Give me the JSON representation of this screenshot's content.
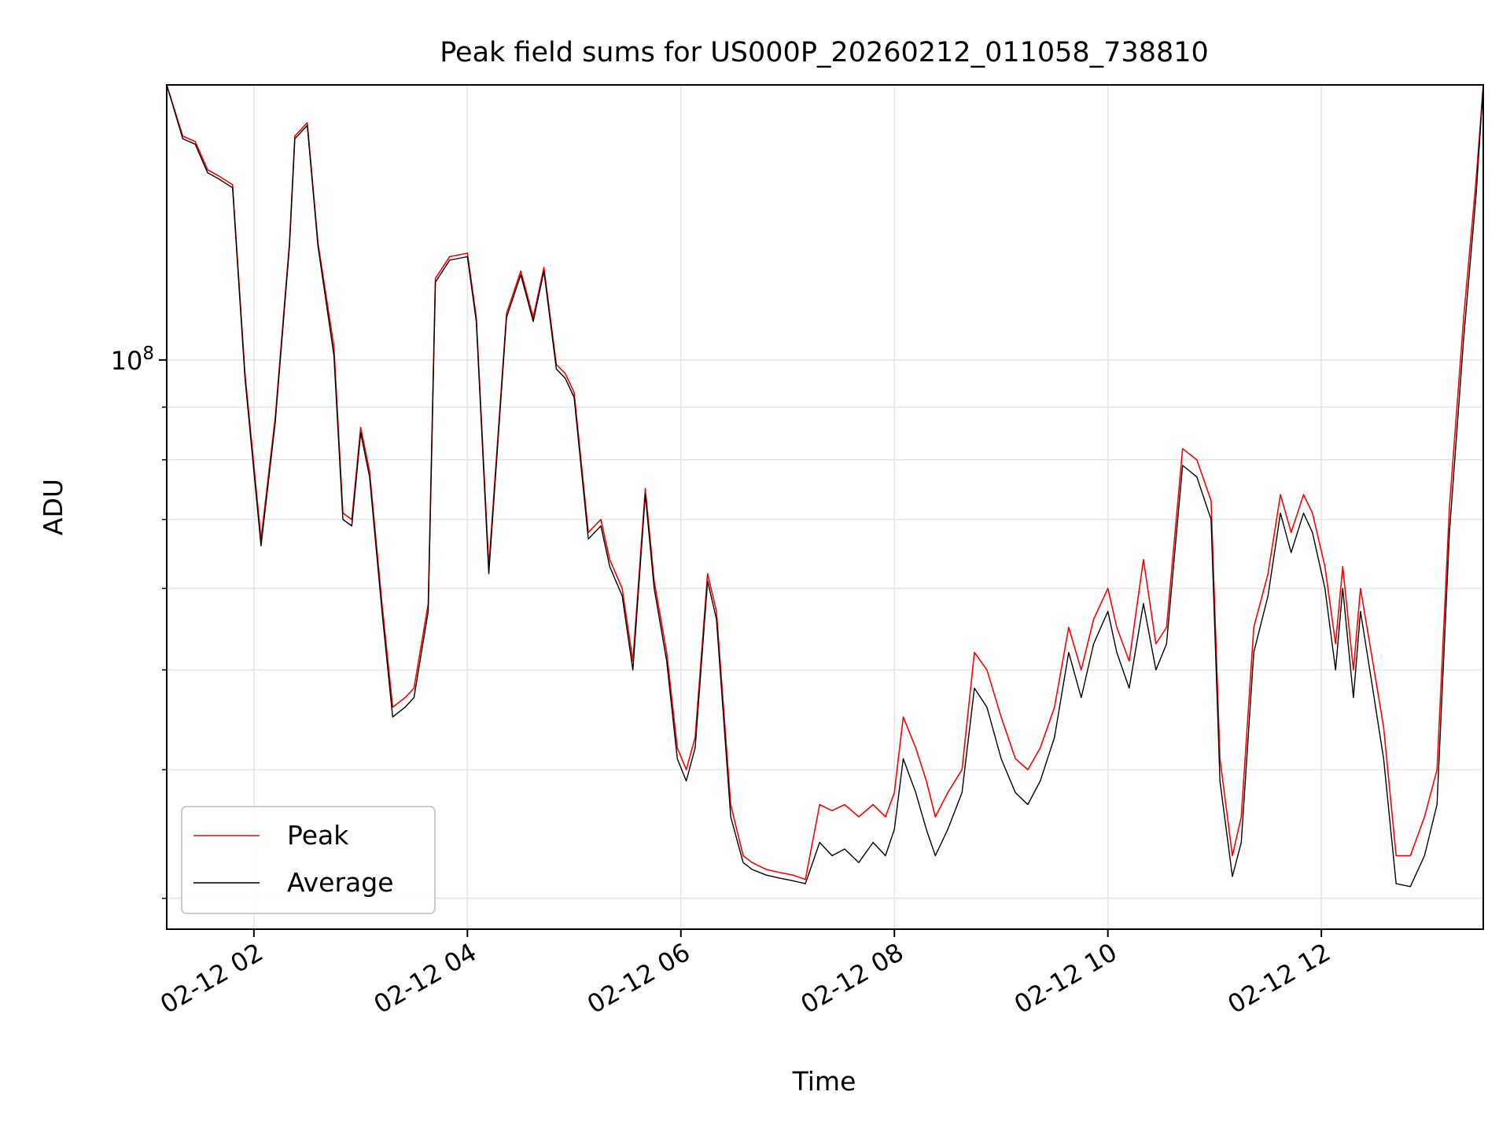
{
  "chart_data": {
    "type": "line",
    "title": "Peak field sums for US000P_20260212_011058_738810",
    "xlabel": "Time",
    "ylabel": "ADU",
    "y_scale": "log",
    "y_major_tick": {
      "value": 100000000,
      "base": "10",
      "exponent": "8"
    },
    "ylim": [
      28000000,
      185000000
    ],
    "xlim": [
      "2026-02-12 01:11",
      "2026-02-12 13:31"
    ],
    "x_ticks": [
      {
        "time": "2026-02-12 02:00",
        "label": "02-12 02"
      },
      {
        "time": "2026-02-12 04:00",
        "label": "02-12 04"
      },
      {
        "time": "2026-02-12 06:00",
        "label": "02-12 06"
      },
      {
        "time": "2026-02-12 08:00",
        "label": "02-12 08"
      },
      {
        "time": "2026-02-12 10:00",
        "label": "02-12 10"
      },
      {
        "time": "2026-02-12 12:00",
        "label": "02-12 12"
      }
    ],
    "grid": true,
    "legend_position": "lower-left",
    "colors": {
      "peak": "#ff0000",
      "average": "#000000",
      "grid": "#e6e6e6"
    },
    "series": [
      {
        "name": "Peak",
        "color": "#ff0000",
        "points": [
          [
            "2026-02-12 01:11",
            185000000
          ],
          [
            "2026-02-12 01:20",
            165000000
          ],
          [
            "2026-02-12 01:27",
            163000000
          ],
          [
            "2026-02-12 01:34",
            153000000
          ],
          [
            "2026-02-12 01:40",
            151000000
          ],
          [
            "2026-02-12 01:48",
            148000000
          ],
          [
            "2026-02-12 01:55",
            97000000
          ],
          [
            "2026-02-12 02:04",
            67000000
          ],
          [
            "2026-02-12 02:12",
            88000000
          ],
          [
            "2026-02-12 02:20",
            130000000
          ],
          [
            "2026-02-12 02:23",
            165000000
          ],
          [
            "2026-02-12 02:30",
            170000000
          ],
          [
            "2026-02-12 02:36",
            130000000
          ],
          [
            "2026-02-12 02:45",
            103000000
          ],
          [
            "2026-02-12 02:50",
            71000000
          ],
          [
            "2026-02-12 02:55",
            70000000
          ],
          [
            "2026-02-12 03:00",
            86000000
          ],
          [
            "2026-02-12 03:05",
            78000000
          ],
          [
            "2026-02-12 03:12",
            58000000
          ],
          [
            "2026-02-12 03:18",
            46000000
          ],
          [
            "2026-02-12 03:25",
            47000000
          ],
          [
            "2026-02-12 03:30",
            48000000
          ],
          [
            "2026-02-12 03:38",
            58000000
          ],
          [
            "2026-02-12 03:42",
            120000000
          ],
          [
            "2026-02-12 03:50",
            126000000
          ],
          [
            "2026-02-12 04:00",
            127000000
          ],
          [
            "2026-02-12 04:05",
            110000000
          ],
          [
            "2026-02-12 04:12",
            63000000
          ],
          [
            "2026-02-12 04:22",
            111000000
          ],
          [
            "2026-02-12 04:30",
            122000000
          ],
          [
            "2026-02-12 04:37",
            110000000
          ],
          [
            "2026-02-12 04:43",
            123000000
          ],
          [
            "2026-02-12 04:50",
            99000000
          ],
          [
            "2026-02-12 04:55",
            97000000
          ],
          [
            "2026-02-12 05:00",
            93000000
          ],
          [
            "2026-02-12 05:08",
            68000000
          ],
          [
            "2026-02-12 05:15",
            70000000
          ],
          [
            "2026-02-12 05:20",
            64000000
          ],
          [
            "2026-02-12 05:27",
            60000000
          ],
          [
            "2026-02-12 05:33",
            51000000
          ],
          [
            "2026-02-12 05:40",
            75000000
          ],
          [
            "2026-02-12 05:45",
            61000000
          ],
          [
            "2026-02-12 05:52",
            52000000
          ],
          [
            "2026-02-12 05:58",
            42000000
          ],
          [
            "2026-02-12 06:03",
            40000000
          ],
          [
            "2026-02-12 06:08",
            43000000
          ],
          [
            "2026-02-12 06:15",
            62000000
          ],
          [
            "2026-02-12 06:20",
            57000000
          ],
          [
            "2026-02-12 06:28",
            37000000
          ],
          [
            "2026-02-12 06:35",
            33000000
          ],
          [
            "2026-02-12 06:40",
            32500000
          ],
          [
            "2026-02-12 06:48",
            32000000
          ],
          [
            "2026-02-12 06:55",
            31800000
          ],
          [
            "2026-02-12 07:03",
            31600000
          ],
          [
            "2026-02-12 07:10",
            31300000
          ],
          [
            "2026-02-12 07:18",
            37000000
          ],
          [
            "2026-02-12 07:25",
            36500000
          ],
          [
            "2026-02-12 07:32",
            37000000
          ],
          [
            "2026-02-12 07:40",
            36000000
          ],
          [
            "2026-02-12 07:48",
            37000000
          ],
          [
            "2026-02-12 07:55",
            36000000
          ],
          [
            "2026-02-12 08:00",
            38000000
          ],
          [
            "2026-02-12 08:05",
            45000000
          ],
          [
            "2026-02-12 08:12",
            42000000
          ],
          [
            "2026-02-12 08:18",
            39000000
          ],
          [
            "2026-02-12 08:23",
            36000000
          ],
          [
            "2026-02-12 08:30",
            38000000
          ],
          [
            "2026-02-12 08:38",
            40000000
          ],
          [
            "2026-02-12 08:45",
            52000000
          ],
          [
            "2026-02-12 08:52",
            50000000
          ],
          [
            "2026-02-12 09:00",
            45000000
          ],
          [
            "2026-02-12 09:08",
            41000000
          ],
          [
            "2026-02-12 09:15",
            40000000
          ],
          [
            "2026-02-12 09:22",
            42000000
          ],
          [
            "2026-02-12 09:30",
            46000000
          ],
          [
            "2026-02-12 09:38",
            55000000
          ],
          [
            "2026-02-12 09:45",
            50000000
          ],
          [
            "2026-02-12 09:52",
            56000000
          ],
          [
            "2026-02-12 10:00",
            60000000
          ],
          [
            "2026-02-12 10:05",
            55000000
          ],
          [
            "2026-02-12 10:12",
            51000000
          ],
          [
            "2026-02-12 10:20",
            64000000
          ],
          [
            "2026-02-12 10:27",
            53000000
          ],
          [
            "2026-02-12 10:33",
            55000000
          ],
          [
            "2026-02-12 10:42",
            82000000
          ],
          [
            "2026-02-12 10:50",
            80000000
          ],
          [
            "2026-02-12 10:58",
            73000000
          ],
          [
            "2026-02-12 11:03",
            41000000
          ],
          [
            "2026-02-12 11:10",
            33000000
          ],
          [
            "2026-02-12 11:15",
            36000000
          ],
          [
            "2026-02-12 11:22",
            55000000
          ],
          [
            "2026-02-12 11:30",
            62000000
          ],
          [
            "2026-02-12 11:37",
            74000000
          ],
          [
            "2026-02-12 11:43",
            68000000
          ],
          [
            "2026-02-12 11:50",
            74000000
          ],
          [
            "2026-02-12 11:55",
            71000000
          ],
          [
            "2026-02-12 12:02",
            63000000
          ],
          [
            "2026-02-12 12:08",
            53000000
          ],
          [
            "2026-02-12 12:12",
            63000000
          ],
          [
            "2026-02-12 12:18",
            50000000
          ],
          [
            "2026-02-12 12:22",
            60000000
          ],
          [
            "2026-02-12 12:28",
            52000000
          ],
          [
            "2026-02-12 12:35",
            44000000
          ],
          [
            "2026-02-12 12:42",
            33000000
          ],
          [
            "2026-02-12 12:50",
            33000000
          ],
          [
            "2026-02-12 12:58",
            36000000
          ],
          [
            "2026-02-12 13:05",
            40000000
          ],
          [
            "2026-02-12 13:12",
            72000000
          ],
          [
            "2026-02-12 13:20",
            110000000
          ],
          [
            "2026-02-12 13:27",
            150000000
          ],
          [
            "2026-02-12 13:31",
            185000000
          ]
        ]
      },
      {
        "name": "Average",
        "color": "#000000",
        "points": [
          [
            "2026-02-12 01:11",
            185000000
          ],
          [
            "2026-02-12 01:20",
            164000000
          ],
          [
            "2026-02-12 01:27",
            162000000
          ],
          [
            "2026-02-12 01:34",
            152000000
          ],
          [
            "2026-02-12 01:40",
            150000000
          ],
          [
            "2026-02-12 01:48",
            147000000
          ],
          [
            "2026-02-12 01:55",
            96000000
          ],
          [
            "2026-02-12 02:04",
            66000000
          ],
          [
            "2026-02-12 02:12",
            87000000
          ],
          [
            "2026-02-12 02:20",
            129000000
          ],
          [
            "2026-02-12 02:23",
            164000000
          ],
          [
            "2026-02-12 02:30",
            169000000
          ],
          [
            "2026-02-12 02:36",
            129000000
          ],
          [
            "2026-02-12 02:45",
            101000000
          ],
          [
            "2026-02-12 02:50",
            70000000
          ],
          [
            "2026-02-12 02:55",
            69000000
          ],
          [
            "2026-02-12 03:00",
            85000000
          ],
          [
            "2026-02-12 03:05",
            77000000
          ],
          [
            "2026-02-12 03:12",
            57000000
          ],
          [
            "2026-02-12 03:18",
            45000000
          ],
          [
            "2026-02-12 03:25",
            46000000
          ],
          [
            "2026-02-12 03:30",
            47000000
          ],
          [
            "2026-02-12 03:38",
            57000000
          ],
          [
            "2026-02-12 03:42",
            119000000
          ],
          [
            "2026-02-12 03:50",
            125000000
          ],
          [
            "2026-02-12 04:00",
            126000000
          ],
          [
            "2026-02-12 04:05",
            109000000
          ],
          [
            "2026-02-12 04:12",
            62000000
          ],
          [
            "2026-02-12 04:22",
            110000000
          ],
          [
            "2026-02-12 04:30",
            121000000
          ],
          [
            "2026-02-12 04:37",
            109000000
          ],
          [
            "2026-02-12 04:43",
            122000000
          ],
          [
            "2026-02-12 04:50",
            98000000
          ],
          [
            "2026-02-12 04:55",
            96000000
          ],
          [
            "2026-02-12 05:00",
            92000000
          ],
          [
            "2026-02-12 05:08",
            67000000
          ],
          [
            "2026-02-12 05:15",
            69000000
          ],
          [
            "2026-02-12 05:20",
            63000000
          ],
          [
            "2026-02-12 05:27",
            59000000
          ],
          [
            "2026-02-12 05:33",
            50000000
          ],
          [
            "2026-02-12 05:40",
            74000000
          ],
          [
            "2026-02-12 05:45",
            60000000
          ],
          [
            "2026-02-12 05:52",
            51000000
          ],
          [
            "2026-02-12 05:58",
            41000000
          ],
          [
            "2026-02-12 06:03",
            39000000
          ],
          [
            "2026-02-12 06:08",
            42000000
          ],
          [
            "2026-02-12 06:15",
            61000000
          ],
          [
            "2026-02-12 06:20",
            56000000
          ],
          [
            "2026-02-12 06:28",
            36000000
          ],
          [
            "2026-02-12 06:35",
            32500000
          ],
          [
            "2026-02-12 06:40",
            32000000
          ],
          [
            "2026-02-12 06:48",
            31600000
          ],
          [
            "2026-02-12 06:55",
            31400000
          ],
          [
            "2026-02-12 07:03",
            31200000
          ],
          [
            "2026-02-12 07:10",
            31000000
          ],
          [
            "2026-02-12 07:18",
            34000000
          ],
          [
            "2026-02-12 07:25",
            33000000
          ],
          [
            "2026-02-12 07:32",
            33500000
          ],
          [
            "2026-02-12 07:40",
            32500000
          ],
          [
            "2026-02-12 07:48",
            34000000
          ],
          [
            "2026-02-12 07:55",
            33000000
          ],
          [
            "2026-02-12 08:00",
            35000000
          ],
          [
            "2026-02-12 08:05",
            41000000
          ],
          [
            "2026-02-12 08:12",
            38000000
          ],
          [
            "2026-02-12 08:18",
            35000000
          ],
          [
            "2026-02-12 08:23",
            33000000
          ],
          [
            "2026-02-12 08:30",
            35000000
          ],
          [
            "2026-02-12 08:38",
            38000000
          ],
          [
            "2026-02-12 08:45",
            48000000
          ],
          [
            "2026-02-12 08:52",
            46000000
          ],
          [
            "2026-02-12 09:00",
            41000000
          ],
          [
            "2026-02-12 09:08",
            38000000
          ],
          [
            "2026-02-12 09:15",
            37000000
          ],
          [
            "2026-02-12 09:22",
            39000000
          ],
          [
            "2026-02-12 09:30",
            43000000
          ],
          [
            "2026-02-12 09:38",
            52000000
          ],
          [
            "2026-02-12 09:45",
            47000000
          ],
          [
            "2026-02-12 09:52",
            53000000
          ],
          [
            "2026-02-12 10:00",
            57000000
          ],
          [
            "2026-02-12 10:05",
            52000000
          ],
          [
            "2026-02-12 10:12",
            48000000
          ],
          [
            "2026-02-12 10:20",
            58000000
          ],
          [
            "2026-02-12 10:27",
            50000000
          ],
          [
            "2026-02-12 10:33",
            53000000
          ],
          [
            "2026-02-12 10:42",
            79000000
          ],
          [
            "2026-02-12 10:50",
            77000000
          ],
          [
            "2026-02-12 10:58",
            70000000
          ],
          [
            "2026-02-12 11:03",
            39000000
          ],
          [
            "2026-02-12 11:10",
            31500000
          ],
          [
            "2026-02-12 11:15",
            34000000
          ],
          [
            "2026-02-12 11:22",
            52000000
          ],
          [
            "2026-02-12 11:30",
            59000000
          ],
          [
            "2026-02-12 11:37",
            71000000
          ],
          [
            "2026-02-12 11:43",
            65000000
          ],
          [
            "2026-02-12 11:50",
            71000000
          ],
          [
            "2026-02-12 11:55",
            68000000
          ],
          [
            "2026-02-12 12:02",
            60000000
          ],
          [
            "2026-02-12 12:08",
            50000000
          ],
          [
            "2026-02-12 12:12",
            60000000
          ],
          [
            "2026-02-12 12:18",
            47000000
          ],
          [
            "2026-02-12 12:22",
            57000000
          ],
          [
            "2026-02-12 12:28",
            49000000
          ],
          [
            "2026-02-12 12:35",
            41000000
          ],
          [
            "2026-02-12 12:42",
            31000000
          ],
          [
            "2026-02-12 12:50",
            30800000
          ],
          [
            "2026-02-12 12:58",
            33000000
          ],
          [
            "2026-02-12 13:05",
            37000000
          ],
          [
            "2026-02-12 13:12",
            68000000
          ],
          [
            "2026-02-12 13:20",
            105000000
          ],
          [
            "2026-02-12 13:27",
            145000000
          ],
          [
            "2026-02-12 13:31",
            185000000
          ]
        ]
      }
    ]
  }
}
